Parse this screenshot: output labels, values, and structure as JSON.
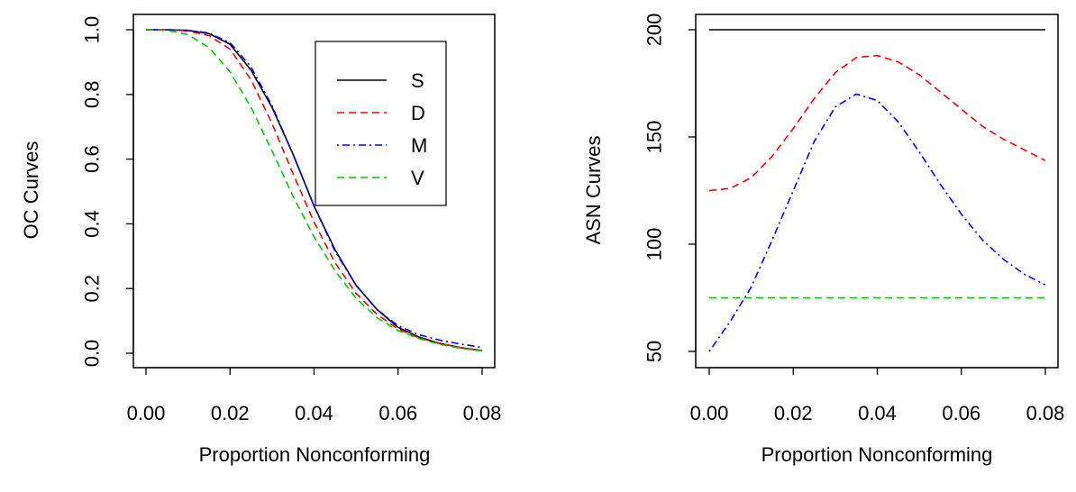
{
  "chart_data": [
    {
      "type": "line",
      "xlabel": "Proportion Nonconforming",
      "ylabel": "OC Curves",
      "xlim": [
        0,
        0.08
      ],
      "ylim": [
        0,
        1
      ],
      "x_ticks": [
        "0.00",
        "0.02",
        "0.04",
        "0.06",
        "0.08"
      ],
      "y_ticks": [
        "0.0",
        "0.2",
        "0.4",
        "0.6",
        "0.8",
        "1.0"
      ],
      "legend": {
        "placement": "top-right"
      },
      "x": [
        0.0,
        0.005,
        0.01,
        0.015,
        0.02,
        0.025,
        0.03,
        0.035,
        0.04,
        0.045,
        0.05,
        0.055,
        0.06,
        0.065,
        0.07,
        0.075,
        0.08
      ],
      "series": [
        {
          "name": "S",
          "color": "#000000",
          "dash": "solid",
          "values": [
            1.0,
            1.0,
            0.998,
            0.988,
            0.955,
            0.875,
            0.76,
            0.615,
            0.455,
            0.32,
            0.21,
            0.135,
            0.08,
            0.05,
            0.03,
            0.017,
            0.008
          ]
        },
        {
          "name": "D",
          "color": "#ff0000",
          "dash": "dashed",
          "values": [
            1.0,
            1.0,
            0.996,
            0.982,
            0.94,
            0.845,
            0.71,
            0.555,
            0.405,
            0.28,
            0.185,
            0.12,
            0.075,
            0.047,
            0.03,
            0.017,
            0.008
          ]
        },
        {
          "name": "M",
          "color": "#0000ff",
          "dash": "dotdash",
          "values": [
            1.0,
            1.0,
            0.998,
            0.99,
            0.96,
            0.885,
            0.765,
            0.615,
            0.455,
            0.315,
            0.21,
            0.135,
            0.085,
            0.057,
            0.04,
            0.028,
            0.018
          ]
        },
        {
          "name": "V",
          "color": "#00cd00",
          "dash": "dashed",
          "values": [
            1.0,
            0.998,
            0.985,
            0.945,
            0.87,
            0.76,
            0.625,
            0.485,
            0.36,
            0.255,
            0.17,
            0.11,
            0.07,
            0.045,
            0.027,
            0.015,
            0.007
          ]
        }
      ]
    },
    {
      "type": "line",
      "xlabel": "Proportion Nonconforming",
      "ylabel": "ASN Curves",
      "xlim": [
        0,
        0.08
      ],
      "ylim": [
        50,
        200
      ],
      "x_ticks": [
        "0.00",
        "0.02",
        "0.04",
        "0.06",
        "0.08"
      ],
      "y_ticks": [
        "50",
        "100",
        "150",
        "200"
      ],
      "x": [
        0.0,
        0.005,
        0.01,
        0.015,
        0.02,
        0.025,
        0.03,
        0.035,
        0.04,
        0.045,
        0.05,
        0.055,
        0.06,
        0.065,
        0.07,
        0.075,
        0.08
      ],
      "series": [
        {
          "name": "S",
          "color": "#000000",
          "dash": "solid",
          "values": [
            200,
            200,
            200,
            200,
            200,
            200,
            200,
            200,
            200,
            200,
            200,
            200,
            200,
            200,
            200,
            200,
            200
          ]
        },
        {
          "name": "D",
          "color": "#ff0000",
          "dash": "dashed",
          "values": [
            125,
            126,
            131,
            141,
            154,
            168,
            180,
            187,
            188,
            185,
            179,
            171,
            163,
            155,
            149,
            144,
            139
          ]
        },
        {
          "name": "M",
          "color": "#0000ff",
          "dash": "dotdash",
          "values": [
            50,
            64,
            80,
            102,
            125,
            148,
            164,
            170,
            167,
            157,
            143,
            128,
            114,
            102,
            93,
            86,
            81
          ]
        },
        {
          "name": "V",
          "color": "#00cd00",
          "dash": "dashed",
          "values": [
            75,
            75,
            75,
            75,
            75,
            75,
            75,
            75,
            75,
            75,
            75,
            75,
            75,
            75,
            75,
            75,
            75
          ]
        }
      ]
    }
  ]
}
